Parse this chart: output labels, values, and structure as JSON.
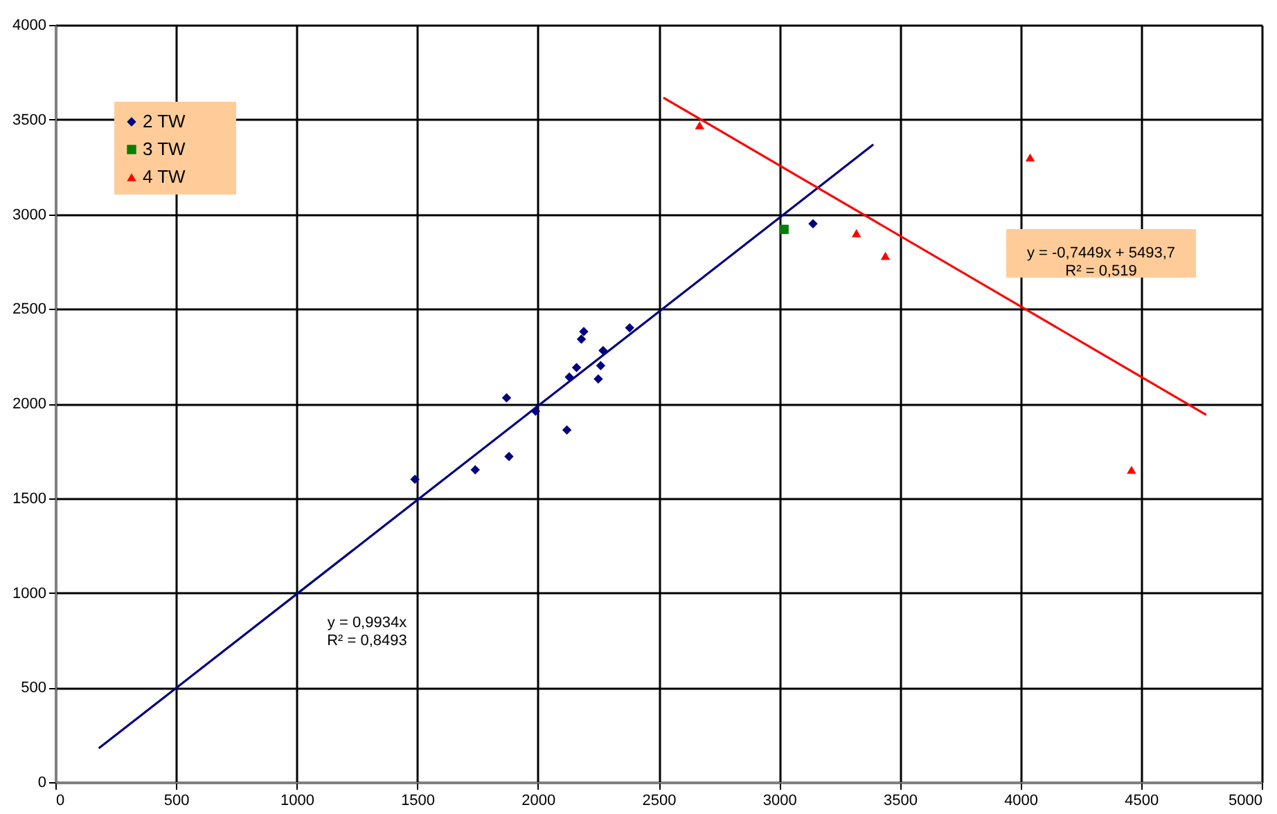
{
  "chart_data": {
    "type": "scatter",
    "xlim": [
      0,
      5000
    ],
    "ylim": [
      0,
      4000
    ],
    "xticks": [
      0,
      500,
      1000,
      1500,
      2000,
      2500,
      3000,
      3500,
      4000,
      4500,
      5000
    ],
    "yticks": [
      0,
      500,
      1000,
      1500,
      2000,
      2500,
      3000,
      3500,
      4000
    ],
    "grid": true,
    "legend": "top left",
    "series": [
      {
        "name": "2 TW",
        "color": "#000080",
        "marker": "diamond",
        "x": [
          1490,
          1740,
          1880,
          1870,
          1990,
          2120,
          2130,
          2160,
          2180,
          2190,
          2250,
          2260,
          2270,
          2380,
          3140
        ],
        "values": [
          1600,
          1650,
          1720,
          2030,
          1960,
          1860,
          2140,
          2190,
          2340,
          2380,
          2130,
          2200,
          2280,
          2400,
          2950
        ]
      },
      {
        "name": "3 TW",
        "color": "#008000",
        "marker": "square",
        "x": [
          3020
        ],
        "values": [
          2920
        ]
      },
      {
        "name": "4 TW",
        "color": "#ff0000",
        "marker": "triangle",
        "x": [
          2670,
          3320,
          3440,
          4040,
          4460
        ],
        "values": [
          3470,
          2900,
          2780,
          3300,
          1650
        ]
      },
      {
        "type": "line",
        "color": "#000080",
        "x": [
          180,
          3390
        ],
        "values": [
          179,
          3368
        ]
      },
      {
        "type": "line",
        "color": "#ff0000",
        "x": [
          2520,
          4770
        ],
        "values": [
          3616,
          1940
        ]
      }
    ],
    "annotations": [
      "y = 0,9934x\nR² = 0,8493",
      "y = -0,7449x + 5493,7\nR² = 0,519"
    ]
  }
}
